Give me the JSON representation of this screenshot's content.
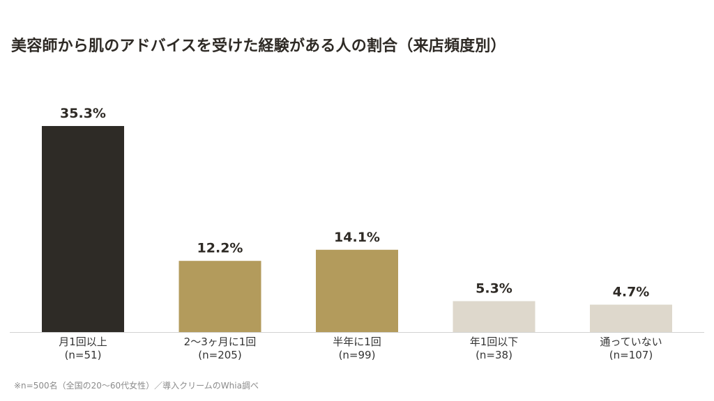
{
  "chart_data": {
    "type": "bar",
    "title": "美容師から肌のアドバイスを受けた経験がある人の割合（来店頻度別）",
    "categories": [
      "月1回以上",
      "2〜3ヶ月に1回",
      "半年に1回",
      "年1回以下",
      "通っていない"
    ],
    "sample_labels": [
      "(n=51)",
      "(n=205)",
      "(n=99)",
      "(n=38)",
      "(n=107)"
    ],
    "values": [
      35.3,
      12.2,
      14.1,
      5.3,
      4.7
    ],
    "value_labels": [
      "35.3%",
      "12.2%",
      "14.1%",
      "5.3%",
      "4.7%"
    ],
    "bar_colors": [
      "#2e2b26",
      "#b39b5c",
      "#b39b5c",
      "#ded8cc",
      "#ded8cc"
    ],
    "ylim": [
      0,
      35.3
    ],
    "grid": false,
    "legend": "none",
    "footnote": "※n=500名（全国の20〜60代女性）／導入クリームのWhia調べ"
  }
}
